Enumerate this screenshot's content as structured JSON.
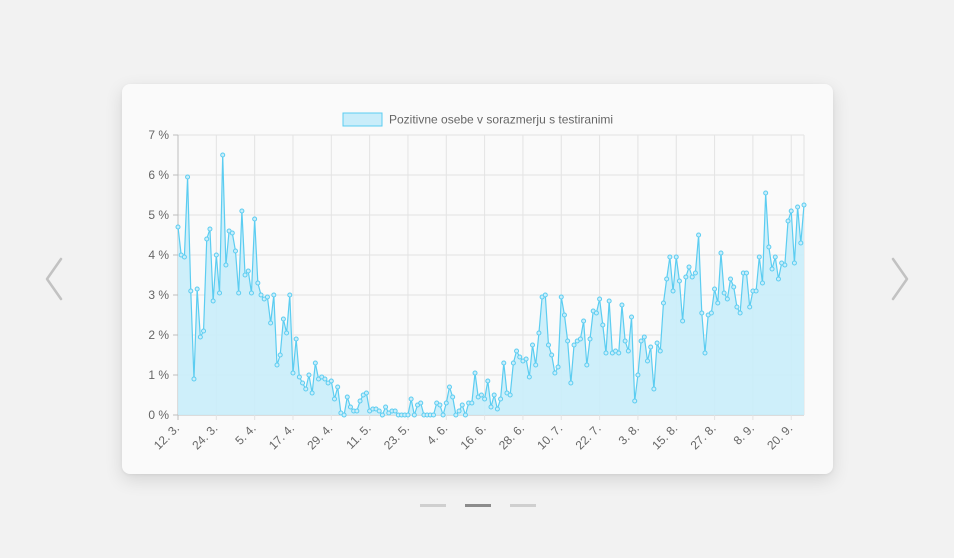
{
  "carousel": {
    "prev_icon": "chevron-left-icon",
    "next_icon": "chevron-right-icon",
    "slide_count": 3,
    "active_slide": 2
  },
  "chart_data": {
    "type": "area",
    "legend": {
      "label": "Pozitivne osebe v sorazmerju s testiranimi",
      "position": "top",
      "fill": "#c9edfa",
      "stroke": "#5ccdf1"
    },
    "grid": true,
    "y_ticks": [
      "0 %",
      "1 %",
      "2 %",
      "3 %",
      "4 %",
      "5 %",
      "6 %",
      "7 %"
    ],
    "ylim": [
      0,
      7
    ],
    "x_start": "2020-03-12",
    "x_ticks": [
      {
        "date": "2020-03-12",
        "label": "12. 3."
      },
      {
        "date": "2020-03-24",
        "label": "24. 3."
      },
      {
        "date": "2020-04-05",
        "label": "5. 4."
      },
      {
        "date": "2020-04-17",
        "label": "17. 4."
      },
      {
        "date": "2020-04-29",
        "label": "29. 4."
      },
      {
        "date": "2020-05-11",
        "label": "11. 5."
      },
      {
        "date": "2020-05-23",
        "label": "23. 5."
      },
      {
        "date": "2020-06-04",
        "label": "4. 6."
      },
      {
        "date": "2020-06-16",
        "label": "16. 6."
      },
      {
        "date": "2020-06-28",
        "label": "28. 6."
      },
      {
        "date": "2020-07-10",
        "label": "10. 7."
      },
      {
        "date": "2020-07-22",
        "label": "22. 7."
      },
      {
        "date": "2020-08-03",
        "label": "3. 8."
      },
      {
        "date": "2020-08-15",
        "label": "15. 8."
      },
      {
        "date": "2020-08-27",
        "label": "27. 8."
      },
      {
        "date": "2020-09-08",
        "label": "8. 9."
      },
      {
        "date": "2020-09-20",
        "label": "20. 9."
      }
    ],
    "values": [
      4.7,
      4.0,
      3.95,
      5.95,
      3.1,
      0.9,
      3.15,
      1.95,
      2.1,
      4.4,
      4.65,
      2.85,
      4.0,
      3.05,
      6.5,
      3.75,
      4.6,
      4.55,
      4.1,
      3.05,
      5.1,
      3.5,
      3.6,
      3.05,
      4.9,
      3.3,
      3.0,
      2.9,
      2.95,
      2.3,
      3.0,
      1.25,
      1.5,
      2.4,
      2.05,
      3.0,
      1.05,
      1.9,
      0.95,
      0.8,
      0.65,
      1.0,
      0.55,
      1.3,
      0.9,
      0.95,
      0.9,
      0.8,
      0.85,
      0.4,
      0.7,
      0.05,
      0.0,
      0.45,
      0.2,
      0.1,
      0.1,
      0.35,
      0.5,
      0.55,
      0.1,
      0.15,
      0.15,
      0.1,
      0.0,
      0.2,
      0.05,
      0.1,
      0.1,
      0.0,
      0.0,
      0.0,
      0.0,
      0.4,
      0.0,
      0.25,
      0.3,
      0.0,
      0.0,
      0.0,
      0.0,
      0.3,
      0.25,
      0.0,
      0.3,
      0.7,
      0.45,
      0.0,
      0.1,
      0.25,
      0.0,
      0.3,
      0.3,
      1.05,
      0.45,
      0.5,
      0.4,
      0.85,
      0.2,
      0.5,
      0.15,
      0.4,
      1.3,
      0.55,
      0.5,
      1.3,
      1.6,
      1.45,
      1.35,
      1.4,
      0.95,
      1.75,
      1.25,
      2.05,
      2.95,
      3.0,
      1.75,
      1.5,
      1.05,
      1.2,
      2.95,
      2.5,
      1.85,
      0.8,
      1.75,
      1.85,
      1.9,
      2.35,
      1.25,
      1.9,
      2.6,
      2.55,
      2.9,
      2.25,
      1.55,
      2.85,
      1.55,
      1.6,
      1.55,
      2.75,
      1.85,
      1.6,
      2.45,
      0.35,
      1.0,
      1.85,
      1.95,
      1.35,
      1.7,
      0.65,
      1.8,
      1.6,
      2.8,
      3.4,
      3.95,
      3.1,
      3.95,
      3.35,
      2.35,
      3.45,
      3.7,
      3.45,
      3.55,
      4.5,
      2.55,
      1.55,
      2.5,
      2.55,
      3.15,
      2.8,
      4.05,
      3.05,
      2.9,
      3.4,
      3.2,
      2.7,
      2.55,
      3.55,
      3.55,
      2.7,
      3.1,
      3.1,
      3.95,
      3.3,
      5.55,
      4.2,
      3.65,
      3.95,
      3.4,
      3.8,
      3.75,
      4.85,
      5.1,
      3.8,
      5.2,
      4.3,
      5.25
    ]
  }
}
